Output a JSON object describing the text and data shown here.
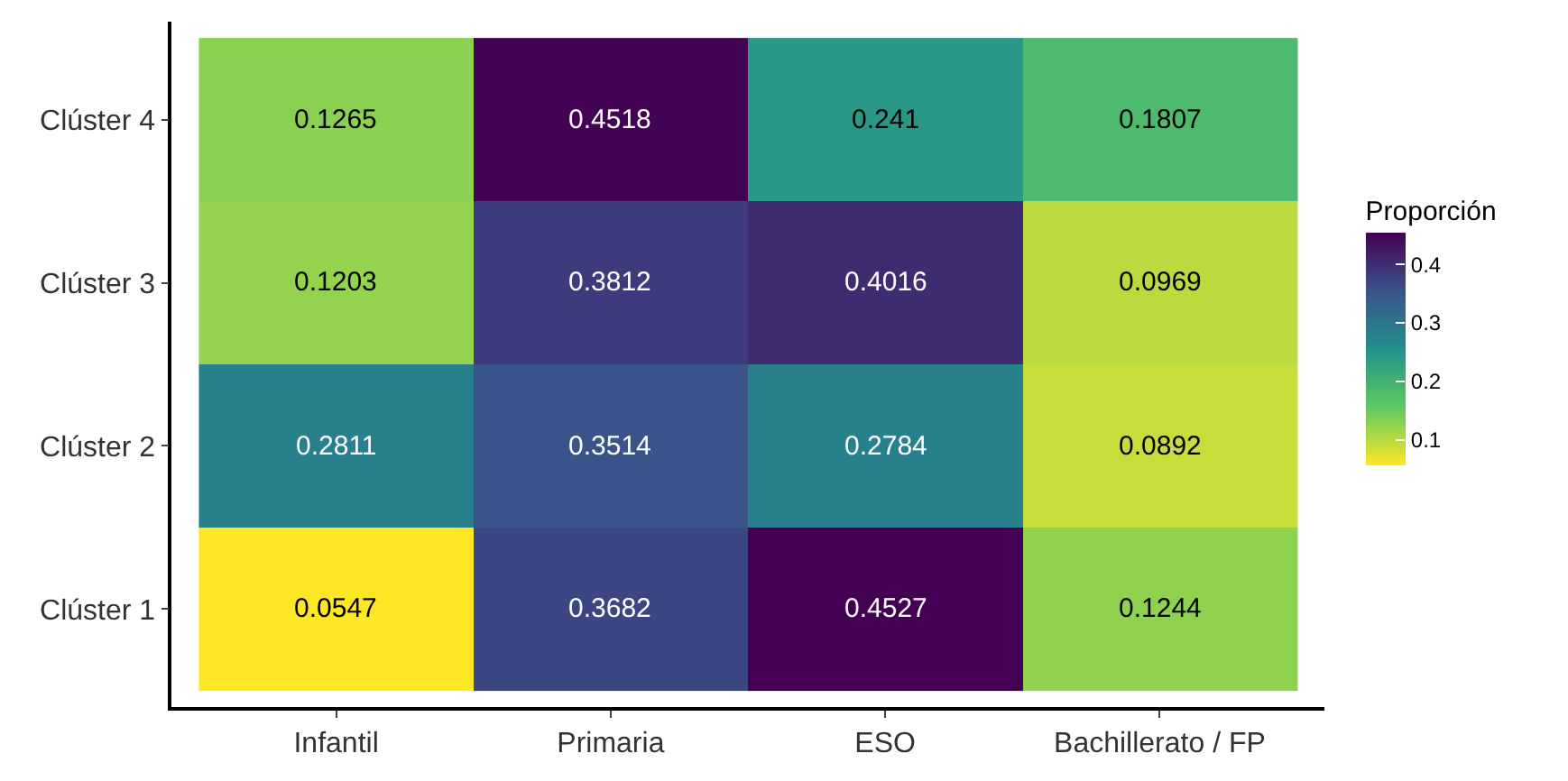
{
  "chart_data": {
    "type": "heatmap",
    "categories": [
      "Infantil",
      "Primaria",
      "ESO",
      "Bachillerato / FP"
    ],
    "y_categories": [
      "Clúster 4",
      "Clúster 3",
      "Clúster 2",
      "Clúster 1"
    ],
    "cells": [
      [
        0.1265,
        0.4518,
        0.241,
        0.1807
      ],
      [
        0.1203,
        0.3812,
        0.4016,
        0.0969
      ],
      [
        0.2811,
        0.3514,
        0.2784,
        0.0892
      ],
      [
        0.0547,
        0.3682,
        0.4527,
        0.1244
      ]
    ],
    "clabel": "Proporción",
    "clim": [
      0.0547,
      0.4527
    ],
    "cticks": [
      0.1,
      0.2,
      0.3,
      0.4
    ],
    "data_labels": true
  }
}
